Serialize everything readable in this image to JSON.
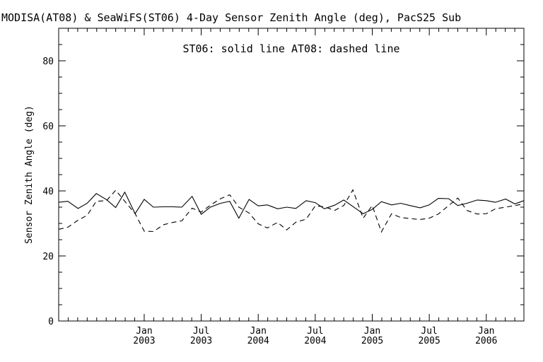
{
  "chart_data": {
    "type": "line",
    "title": "MODISA(AT08) & SeaWiFS(ST06) 4-Day Sensor Zenith Angle (deg), PacS25 Sub",
    "annotation": "ST06: solid line   AT08: dashed line",
    "xlabel": "",
    "ylabel": "Sensor Zenith Angle (deg)",
    "ylim": [
      0,
      90
    ],
    "xlim": [
      2002.25,
      2006.33
    ],
    "grid": false,
    "y_ticks": [
      0,
      20,
      40,
      60,
      80
    ],
    "x_ticks": [
      {
        "x": 2003.0,
        "month": "Jan",
        "year": "2003"
      },
      {
        "x": 2003.5,
        "month": "Jul",
        "year": "2003"
      },
      {
        "x": 2004.0,
        "month": "Jan",
        "year": "2004"
      },
      {
        "x": 2004.5,
        "month": "Jul",
        "year": "2004"
      },
      {
        "x": 2005.0,
        "month": "Jan",
        "year": "2005"
      },
      {
        "x": 2005.5,
        "month": "Jul",
        "year": "2005"
      },
      {
        "x": 2006.0,
        "month": "Jan",
        "year": "2006"
      }
    ],
    "series": [
      {
        "name": "ST06",
        "style": "solid",
        "color": "#000000",
        "points": [
          [
            2002.25,
            36.5
          ],
          [
            2002.33,
            36.8
          ],
          [
            2002.42,
            34.6
          ],
          [
            2002.5,
            36.2
          ],
          [
            2002.58,
            39.2
          ],
          [
            2002.67,
            37.3
          ],
          [
            2002.75,
            34.9
          ],
          [
            2002.83,
            39.6
          ],
          [
            2002.92,
            33.0
          ],
          [
            2003.0,
            37.4
          ],
          [
            2003.08,
            35.0
          ],
          [
            2003.17,
            35.1
          ],
          [
            2003.25,
            35.1
          ],
          [
            2003.33,
            35.0
          ],
          [
            2003.42,
            38.3
          ],
          [
            2003.5,
            32.8
          ],
          [
            2003.58,
            35.0
          ],
          [
            2003.67,
            36.2
          ],
          [
            2003.75,
            36.8
          ],
          [
            2003.83,
            31.6
          ],
          [
            2003.92,
            37.4
          ],
          [
            2004.0,
            35.4
          ],
          [
            2004.08,
            35.7
          ],
          [
            2004.17,
            34.5
          ],
          [
            2004.25,
            35.0
          ],
          [
            2004.33,
            34.6
          ],
          [
            2004.42,
            37.0
          ],
          [
            2004.5,
            36.4
          ],
          [
            2004.58,
            34.5
          ],
          [
            2004.67,
            35.6
          ],
          [
            2004.75,
            37.2
          ],
          [
            2004.83,
            35.2
          ],
          [
            2004.92,
            33.0
          ],
          [
            2005.0,
            34.3
          ],
          [
            2005.08,
            36.7
          ],
          [
            2005.17,
            35.7
          ],
          [
            2005.25,
            36.2
          ],
          [
            2005.33,
            35.5
          ],
          [
            2005.42,
            34.8
          ],
          [
            2005.5,
            35.7
          ],
          [
            2005.58,
            37.7
          ],
          [
            2005.67,
            37.6
          ],
          [
            2005.75,
            35.5
          ],
          [
            2005.83,
            36.2
          ],
          [
            2005.92,
            37.2
          ],
          [
            2006.0,
            37.0
          ],
          [
            2006.08,
            36.5
          ],
          [
            2006.17,
            37.5
          ],
          [
            2006.25,
            36.0
          ],
          [
            2006.33,
            37.0
          ]
        ]
      },
      {
        "name": "AT08",
        "style": "dashed",
        "color": "#000000",
        "points": [
          [
            2002.25,
            28.2
          ],
          [
            2002.33,
            28.8
          ],
          [
            2002.42,
            31.0
          ],
          [
            2002.5,
            32.5
          ],
          [
            2002.58,
            36.8
          ],
          [
            2002.67,
            37.0
          ],
          [
            2002.75,
            40.2
          ],
          [
            2002.83,
            36.8
          ],
          [
            2002.92,
            33.0
          ],
          [
            2003.0,
            27.6
          ],
          [
            2003.08,
            27.5
          ],
          [
            2003.17,
            29.6
          ],
          [
            2003.25,
            30.3
          ],
          [
            2003.33,
            30.8
          ],
          [
            2003.42,
            34.7
          ],
          [
            2003.5,
            33.5
          ],
          [
            2003.58,
            35.6
          ],
          [
            2003.67,
            37.6
          ],
          [
            2003.75,
            38.8
          ],
          [
            2003.83,
            35.0
          ],
          [
            2003.92,
            33.2
          ],
          [
            2004.0,
            29.9
          ],
          [
            2004.08,
            28.6
          ],
          [
            2004.17,
            30.3
          ],
          [
            2004.25,
            28.0
          ],
          [
            2004.33,
            30.4
          ],
          [
            2004.42,
            31.3
          ],
          [
            2004.5,
            35.4
          ],
          [
            2004.58,
            35.1
          ],
          [
            2004.67,
            34.0
          ],
          [
            2004.75,
            35.5
          ],
          [
            2004.83,
            40.3
          ],
          [
            2004.92,
            31.6
          ],
          [
            2005.0,
            35.5
          ],
          [
            2005.08,
            27.4
          ],
          [
            2005.17,
            33.0
          ],
          [
            2005.25,
            31.8
          ],
          [
            2005.33,
            31.5
          ],
          [
            2005.42,
            31.2
          ],
          [
            2005.5,
            31.6
          ],
          [
            2005.58,
            32.9
          ],
          [
            2005.67,
            35.5
          ],
          [
            2005.75,
            37.8
          ],
          [
            2005.83,
            34.0
          ],
          [
            2005.92,
            32.9
          ],
          [
            2006.0,
            33.0
          ],
          [
            2006.08,
            34.5
          ],
          [
            2006.17,
            35.0
          ],
          [
            2006.25,
            35.5
          ],
          [
            2006.33,
            36.0
          ]
        ]
      }
    ]
  }
}
